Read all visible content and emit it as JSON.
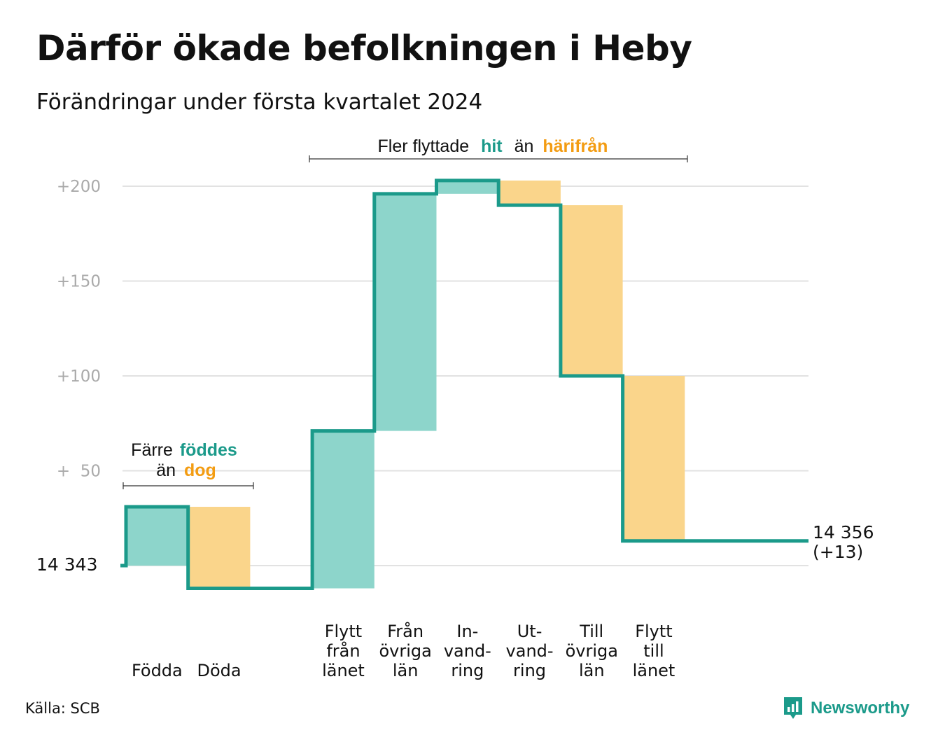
{
  "header": {
    "title": "Därför ökade befolkningen i Heby",
    "subtitle": "Förändringar under första kvartalet 2024"
  },
  "source": "Källa: SCB",
  "brand": {
    "name": "Newsworthy"
  },
  "colors": {
    "increase_fill": "#8dd5cb",
    "decrease_fill": "#fad58b",
    "line": "#1b9a8a",
    "accent_teal": "#1b9a8a",
    "accent_orange": "#f39c12",
    "grid": "#e2e2e2",
    "tick_text": "#aaaaaa"
  },
  "annotations": {
    "births_deaths": {
      "line1_prefix": "Färre",
      "line1_highlight": "föddes",
      "line2_prefix": "än",
      "line2_highlight": "dog"
    },
    "migration": {
      "prefix": "Fler flyttade",
      "highlight1": "hit",
      "middle": "än",
      "highlight2": "härifrån"
    }
  },
  "chart_data": {
    "type": "waterfall",
    "title": "Därför ökade befolkningen i Heby",
    "subtitle": "Förändringar under första kvartalet 2024",
    "start_value": 14343,
    "start_label": "14 343",
    "end_value": 14356,
    "end_label_line1": "14 356",
    "end_label_line2": "(+13)",
    "y_ticks": [
      {
        "value": 50,
        "label": "+  50"
      },
      {
        "value": 100,
        "label": "+100"
      },
      {
        "value": 150,
        "label": "+150"
      },
      {
        "value": 200,
        "label": "+200"
      }
    ],
    "ylim": [
      -12,
      212
    ],
    "grid": true,
    "steps": [
      {
        "label_lines": [
          "Födda"
        ],
        "change": 31
      },
      {
        "label_lines": [
          "Döda"
        ],
        "change": -43
      },
      {
        "label_lines": [
          "",
          ""
        ],
        "change": 0,
        "spacer": true
      },
      {
        "label_lines": [
          "Flytt",
          "från",
          "länet"
        ],
        "change": 83
      },
      {
        "label_lines": [
          "Från",
          "övriga",
          "län"
        ],
        "change": 125
      },
      {
        "label_lines": [
          "In-",
          "vand-",
          "ring"
        ],
        "change": 7
      },
      {
        "label_lines": [
          "Ut-",
          "vand-",
          "ring"
        ],
        "change": -13
      },
      {
        "label_lines": [
          "Till",
          "övriga",
          "län"
        ],
        "change": -90
      },
      {
        "label_lines": [
          "Flytt",
          "till",
          "länet"
        ],
        "change": -87
      }
    ]
  }
}
